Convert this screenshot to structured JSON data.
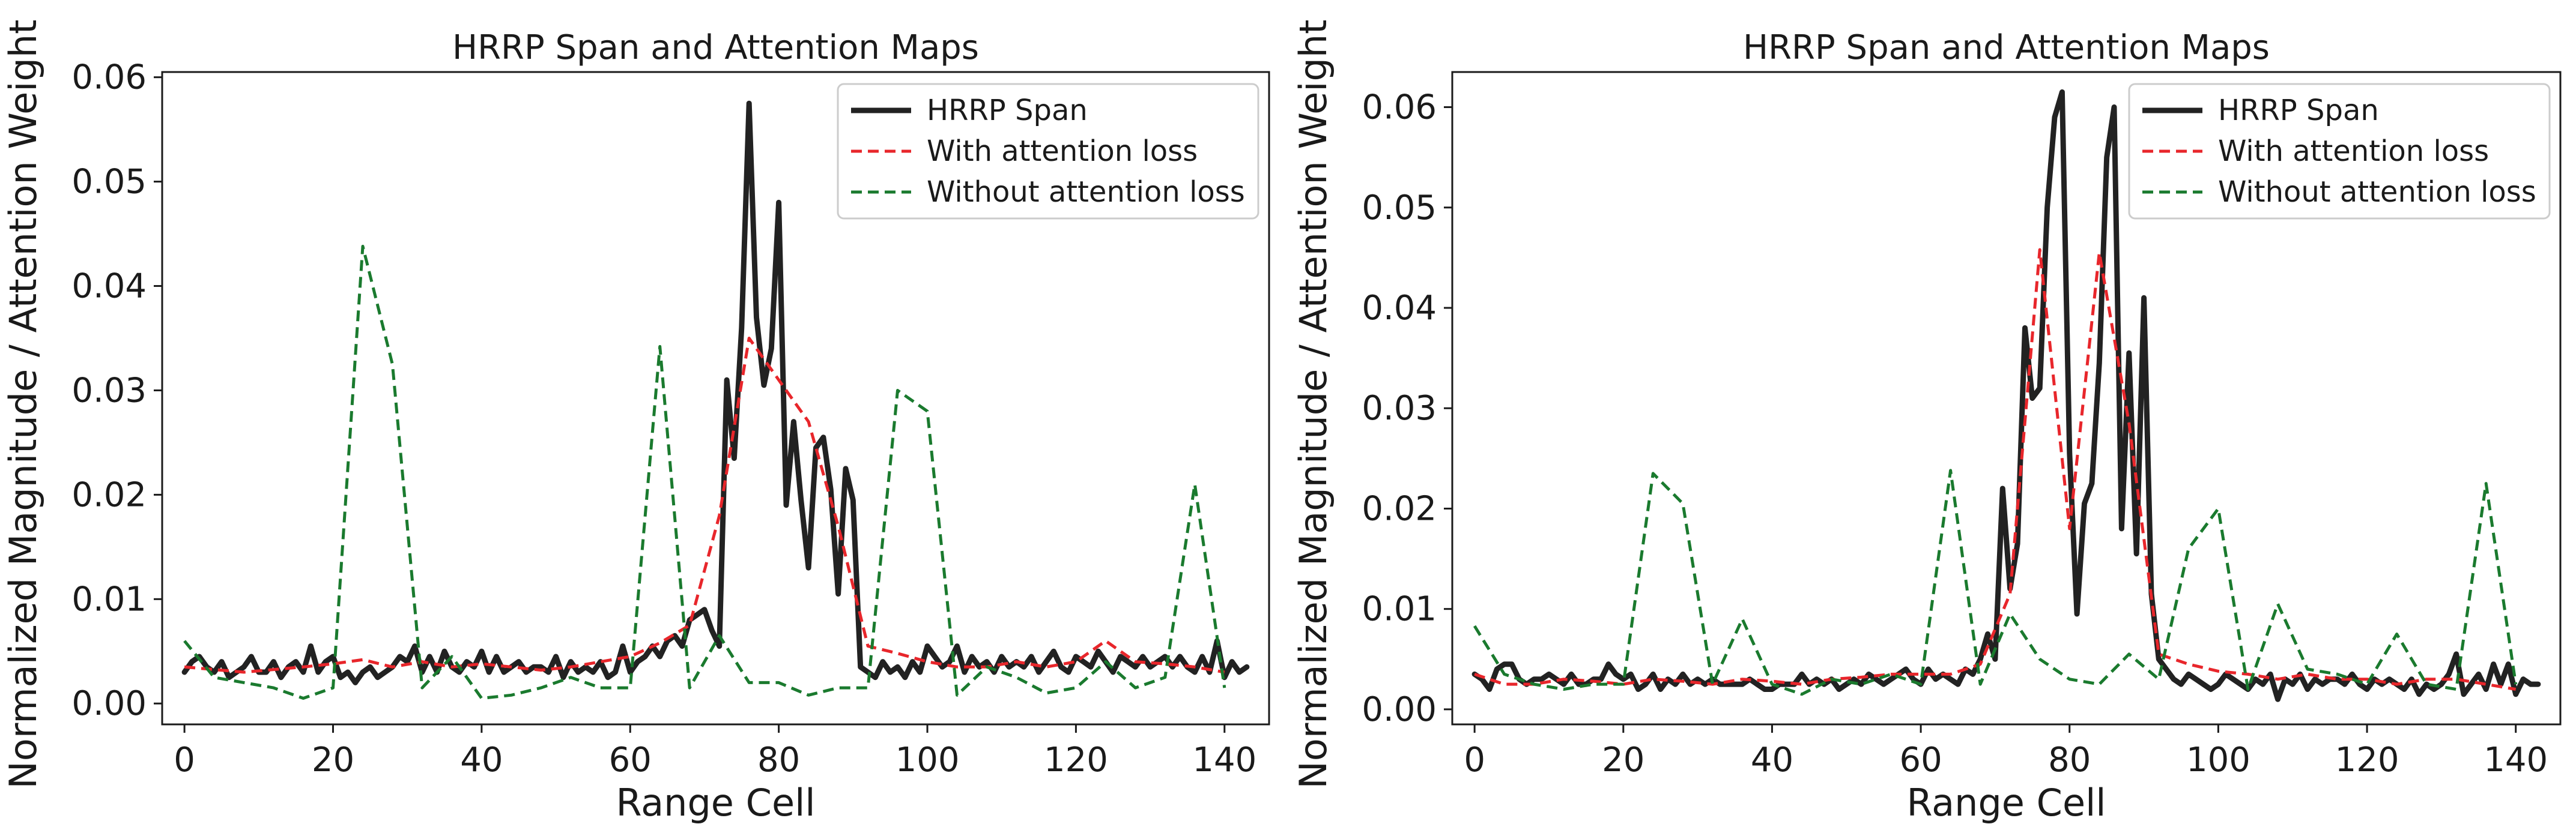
{
  "chart_data": [
    {
      "type": "line",
      "title": "HRRP Span and Attention Maps",
      "xlabel": "Range Cell",
      "ylabel": "Normalized Magnitude / Attention Weight",
      "xlim": [
        -3,
        146
      ],
      "ylim": [
        -0.002,
        0.0605
      ],
      "xticks": [
        0,
        20,
        40,
        60,
        80,
        100,
        120,
        140
      ],
      "yticks": [
        0.0,
        0.01,
        0.02,
        0.03,
        0.04,
        0.05,
        0.06
      ],
      "ytick_labels": [
        "0.00",
        "0.01",
        "0.02",
        "0.03",
        "0.04",
        "0.05",
        "0.06"
      ],
      "legend_position": "top-right",
      "series": [
        {
          "name": "HRRP Span",
          "color": "#222222",
          "style": "solid",
          "x": [
            0,
            1,
            2,
            3,
            4,
            5,
            6,
            7,
            8,
            9,
            10,
            11,
            12,
            13,
            14,
            15,
            16,
            17,
            18,
            19,
            20,
            21,
            22,
            23,
            24,
            25,
            26,
            27,
            28,
            29,
            30,
            31,
            32,
            33,
            34,
            35,
            36,
            37,
            38,
            39,
            40,
            41,
            42,
            43,
            44,
            45,
            46,
            47,
            48,
            49,
            50,
            51,
            52,
            53,
            54,
            55,
            56,
            57,
            58,
            59,
            60,
            61,
            62,
            63,
            64,
            65,
            66,
            67,
            68,
            69,
            70,
            71,
            72,
            73,
            74,
            75,
            76,
            77,
            78,
            79,
            80,
            81,
            82,
            83,
            84,
            85,
            86,
            87,
            88,
            89,
            90,
            91,
            92,
            93,
            94,
            95,
            96,
            97,
            98,
            99,
            100,
            101,
            102,
            103,
            104,
            105,
            106,
            107,
            108,
            109,
            110,
            111,
            112,
            113,
            114,
            115,
            116,
            117,
            118,
            119,
            120,
            121,
            122,
            123,
            124,
            125,
            126,
            127,
            128,
            129,
            130,
            131,
            132,
            133,
            134,
            135,
            136,
            137,
            138,
            139,
            140,
            141,
            142,
            143
          ],
          "y": [
            0.003,
            0.004,
            0.0045,
            0.0035,
            0.003,
            0.004,
            0.0025,
            0.003,
            0.0035,
            0.0045,
            0.003,
            0.003,
            0.004,
            0.0025,
            0.0035,
            0.004,
            0.003,
            0.0055,
            0.003,
            0.004,
            0.0045,
            0.0025,
            0.003,
            0.002,
            0.003,
            0.0035,
            0.0025,
            0.003,
            0.0035,
            0.0045,
            0.004,
            0.0055,
            0.003,
            0.0045,
            0.003,
            0.005,
            0.0035,
            0.003,
            0.004,
            0.0035,
            0.005,
            0.003,
            0.0045,
            0.003,
            0.0035,
            0.004,
            0.003,
            0.0035,
            0.0035,
            0.003,
            0.0045,
            0.0025,
            0.004,
            0.003,
            0.0035,
            0.003,
            0.004,
            0.0025,
            0.003,
            0.0055,
            0.003,
            0.004,
            0.0045,
            0.0055,
            0.0045,
            0.006,
            0.0065,
            0.0055,
            0.008,
            0.0085,
            0.009,
            0.007,
            0.0055,
            0.031,
            0.0235,
            0.036,
            0.0575,
            0.037,
            0.0305,
            0.034,
            0.048,
            0.019,
            0.027,
            0.0195,
            0.013,
            0.0245,
            0.0255,
            0.0205,
            0.0105,
            0.0225,
            0.0195,
            0.0035,
            0.003,
            0.0025,
            0.004,
            0.003,
            0.0035,
            0.0025,
            0.004,
            0.003,
            0.0055,
            0.0045,
            0.0035,
            0.004,
            0.0055,
            0.003,
            0.0045,
            0.0035,
            0.004,
            0.003,
            0.0045,
            0.0035,
            0.004,
            0.0035,
            0.0045,
            0.003,
            0.004,
            0.005,
            0.0035,
            0.003,
            0.0045,
            0.004,
            0.0035,
            0.005,
            0.004,
            0.003,
            0.0045,
            0.004,
            0.0035,
            0.0045,
            0.0035,
            0.004,
            0.0045,
            0.0035,
            0.0045,
            0.0035,
            0.003,
            0.0045,
            0.003,
            0.006,
            0.0025,
            0.004,
            0.003,
            0.0035
          ]
        },
        {
          "name": "With attention loss",
          "color": "#e8262b",
          "style": "dashed",
          "x": [
            0,
            8,
            16,
            20,
            24,
            28,
            32,
            36,
            40,
            44,
            48,
            52,
            56,
            60,
            64,
            68,
            72,
            76,
            80,
            84,
            88,
            92,
            96,
            100,
            104,
            108,
            112,
            116,
            120,
            124,
            128,
            132,
            136,
            140
          ],
          "y": [
            0.0035,
            0.003,
            0.0035,
            0.0038,
            0.0042,
            0.0035,
            0.004,
            0.0035,
            0.0038,
            0.0035,
            0.0032,
            0.0035,
            0.004,
            0.0045,
            0.0058,
            0.0075,
            0.018,
            0.035,
            0.031,
            0.027,
            0.017,
            0.0055,
            0.0048,
            0.004,
            0.0035,
            0.0035,
            0.004,
            0.0035,
            0.004,
            0.006,
            0.004,
            0.0038,
            0.0035,
            0.003
          ]
        },
        {
          "name": "Without attention loss",
          "color": "#1a7a2e",
          "style": "dashed",
          "x": [
            0,
            4,
            8,
            12,
            16,
            20,
            24,
            28,
            32,
            36,
            40,
            44,
            48,
            52,
            56,
            60,
            64,
            68,
            72,
            76,
            80,
            84,
            88,
            92,
            96,
            100,
            104,
            108,
            112,
            116,
            120,
            124,
            128,
            132,
            136,
            140
          ],
          "y": [
            0.006,
            0.0025,
            0.002,
            0.0015,
            0.0005,
            0.0015,
            0.0438,
            0.0325,
            0.0015,
            0.0045,
            0.0005,
            0.0008,
            0.0015,
            0.0025,
            0.0015,
            0.0015,
            0.0342,
            0.0015,
            0.0065,
            0.002,
            0.002,
            0.0008,
            0.0015,
            0.0015,
            0.03,
            0.028,
            0.0008,
            0.0035,
            0.0025,
            0.001,
            0.0015,
            0.004,
            0.0015,
            0.0025,
            0.021,
            0.0015
          ]
        }
      ]
    },
    {
      "type": "line",
      "title": "HRRP Span and Attention Maps",
      "xlabel": "Range Cell",
      "ylabel": "Normalized Magnitude / Attention Weight",
      "xlim": [
        -3,
        146
      ],
      "ylim": [
        -0.0015,
        0.0635
      ],
      "xticks": [
        0,
        20,
        40,
        60,
        80,
        100,
        120,
        140
      ],
      "yticks": [
        0.0,
        0.01,
        0.02,
        0.03,
        0.04,
        0.05,
        0.06
      ],
      "ytick_labels": [
        "0.00",
        "0.01",
        "0.02",
        "0.03",
        "0.04",
        "0.05",
        "0.06"
      ],
      "legend_position": "top-right",
      "series": [
        {
          "name": "HRRP Span",
          "color": "#222222",
          "style": "solid",
          "x": [
            0,
            1,
            2,
            3,
            4,
            5,
            6,
            7,
            8,
            9,
            10,
            11,
            12,
            13,
            14,
            15,
            16,
            17,
            18,
            19,
            20,
            21,
            22,
            23,
            24,
            25,
            26,
            27,
            28,
            29,
            30,
            31,
            32,
            33,
            34,
            35,
            36,
            37,
            38,
            39,
            40,
            41,
            42,
            43,
            44,
            45,
            46,
            47,
            48,
            49,
            50,
            51,
            52,
            53,
            54,
            55,
            56,
            57,
            58,
            59,
            60,
            61,
            62,
            63,
            64,
            65,
            66,
            67,
            68,
            69,
            70,
            71,
            72,
            73,
            74,
            75,
            76,
            77,
            78,
            79,
            80,
            81,
            82,
            83,
            84,
            85,
            86,
            87,
            88,
            89,
            90,
            91,
            92,
            93,
            94,
            95,
            96,
            97,
            98,
            99,
            100,
            101,
            102,
            103,
            104,
            105,
            106,
            107,
            108,
            109,
            110,
            111,
            112,
            113,
            114,
            115,
            116,
            117,
            118,
            119,
            120,
            121,
            122,
            123,
            124,
            125,
            126,
            127,
            128,
            129,
            130,
            131,
            132,
            133,
            134,
            135,
            136,
            137,
            138,
            139,
            140,
            141,
            142,
            143
          ],
          "y": [
            0.0035,
            0.003,
            0.002,
            0.004,
            0.0045,
            0.0045,
            0.003,
            0.0025,
            0.003,
            0.003,
            0.0035,
            0.003,
            0.0025,
            0.0035,
            0.0025,
            0.0025,
            0.003,
            0.003,
            0.0045,
            0.0035,
            0.003,
            0.0035,
            0.002,
            0.0025,
            0.0035,
            0.002,
            0.003,
            0.0025,
            0.0035,
            0.0025,
            0.003,
            0.0025,
            0.003,
            0.0025,
            0.0025,
            0.0025,
            0.0025,
            0.003,
            0.0025,
            0.002,
            0.002,
            0.0025,
            0.0025,
            0.0025,
            0.0035,
            0.0025,
            0.003,
            0.0025,
            0.003,
            0.002,
            0.0025,
            0.003,
            0.0025,
            0.0035,
            0.003,
            0.0025,
            0.003,
            0.0035,
            0.004,
            0.003,
            0.0025,
            0.004,
            0.003,
            0.0035,
            0.003,
            0.0025,
            0.004,
            0.0035,
            0.005,
            0.0075,
            0.005,
            0.022,
            0.012,
            0.0165,
            0.038,
            0.031,
            0.032,
            0.05,
            0.059,
            0.0615,
            0.0255,
            0.0095,
            0.0205,
            0.0225,
            0.0345,
            0.055,
            0.06,
            0.018,
            0.0355,
            0.0155,
            0.041,
            0.0115,
            0.005,
            0.004,
            0.003,
            0.0025,
            0.0035,
            0.003,
            0.0025,
            0.002,
            0.0025,
            0.0035,
            0.003,
            0.0025,
            0.002,
            0.003,
            0.0025,
            0.0035,
            0.001,
            0.003,
            0.0025,
            0.0035,
            0.002,
            0.003,
            0.0025,
            0.003,
            0.003,
            0.0025,
            0.0035,
            0.0025,
            0.002,
            0.003,
            0.0025,
            0.003,
            0.0025,
            0.002,
            0.003,
            0.0015,
            0.0025,
            0.002,
            0.0025,
            0.0035,
            0.0055,
            0.0015,
            0.0025,
            0.0035,
            0.002,
            0.0045,
            0.0025,
            0.0045,
            0.0015,
            0.003,
            0.0025,
            0.0025
          ]
        },
        {
          "name": "With attention loss",
          "color": "#e8262b",
          "style": "dashed",
          "x": [
            0,
            4,
            8,
            12,
            16,
            20,
            24,
            28,
            32,
            36,
            40,
            44,
            48,
            52,
            56,
            60,
            64,
            68,
            72,
            76,
            80,
            84,
            88,
            92,
            96,
            100,
            104,
            108,
            112,
            116,
            120,
            124,
            128,
            132,
            136,
            140
          ],
          "y": [
            0.0035,
            0.0025,
            0.0025,
            0.003,
            0.0028,
            0.0025,
            0.003,
            0.0028,
            0.0025,
            0.003,
            0.0028,
            0.0025,
            0.003,
            0.0032,
            0.0035,
            0.0035,
            0.0035,
            0.0045,
            0.0115,
            0.0458,
            0.018,
            0.0455,
            0.0285,
            0.0055,
            0.0045,
            0.0038,
            0.0035,
            0.003,
            0.0035,
            0.003,
            0.003,
            0.0025,
            0.003,
            0.003,
            0.0025,
            0.002
          ]
        },
        {
          "name": "Without attention loss",
          "color": "#1a7a2e",
          "style": "dashed",
          "x": [
            0,
            4,
            8,
            12,
            16,
            20,
            24,
            28,
            32,
            36,
            40,
            44,
            48,
            52,
            56,
            60,
            64,
            68,
            72,
            76,
            80,
            84,
            88,
            92,
            96,
            100,
            104,
            108,
            112,
            116,
            120,
            124,
            128,
            132,
            136,
            140
          ],
          "y": [
            0.0083,
            0.0035,
            0.0025,
            0.002,
            0.0025,
            0.0025,
            0.0235,
            0.0205,
            0.0025,
            0.009,
            0.0025,
            0.0015,
            0.003,
            0.0025,
            0.0035,
            0.0025,
            0.0238,
            0.0025,
            0.0095,
            0.005,
            0.003,
            0.0025,
            0.0055,
            0.003,
            0.016,
            0.02,
            0.002,
            0.0105,
            0.004,
            0.0035,
            0.0025,
            0.0075,
            0.0025,
            0.002,
            0.0225,
            0.0025
          ]
        }
      ]
    }
  ]
}
